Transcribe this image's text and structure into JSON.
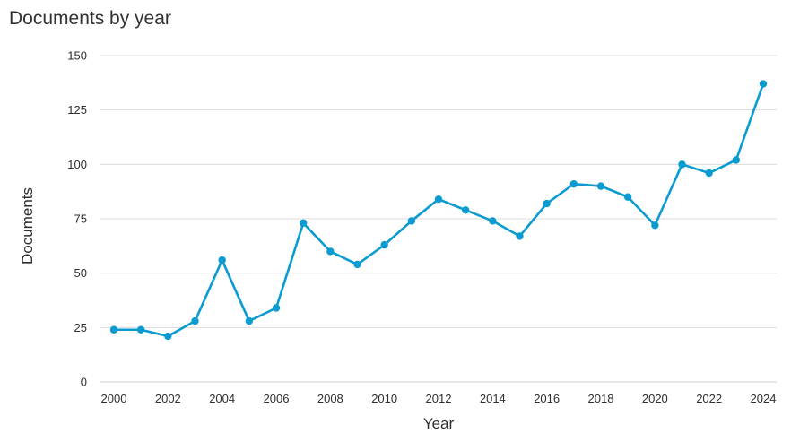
{
  "chart_data": {
    "type": "line",
    "title": "Documents by year",
    "xlabel": "Year",
    "ylabel": "Documents",
    "x": [
      2000,
      2001,
      2002,
      2003,
      2004,
      2005,
      2006,
      2007,
      2008,
      2009,
      2010,
      2011,
      2012,
      2013,
      2014,
      2015,
      2016,
      2017,
      2018,
      2019,
      2020,
      2021,
      2022,
      2023,
      2024
    ],
    "series": [
      {
        "name": "Documents",
        "color": "#0a9bd0",
        "values": [
          24,
          24,
          21,
          28,
          56,
          28,
          34,
          73,
          60,
          54,
          63,
          74,
          84,
          79,
          74,
          67,
          82,
          91,
          90,
          85,
          72,
          100,
          96,
          102,
          137
        ]
      }
    ],
    "xticks": [
      "2000",
      "2002",
      "2004",
      "2006",
      "2008",
      "2010",
      "2012",
      "2014",
      "2016",
      "2018",
      "2020",
      "2022",
      "2024"
    ],
    "yticks": [
      "0",
      "25",
      "50",
      "75",
      "100",
      "125",
      "150"
    ],
    "xlim": [
      2000,
      2024
    ],
    "ylim": [
      0,
      150
    ],
    "grid": true,
    "legend": "none"
  }
}
